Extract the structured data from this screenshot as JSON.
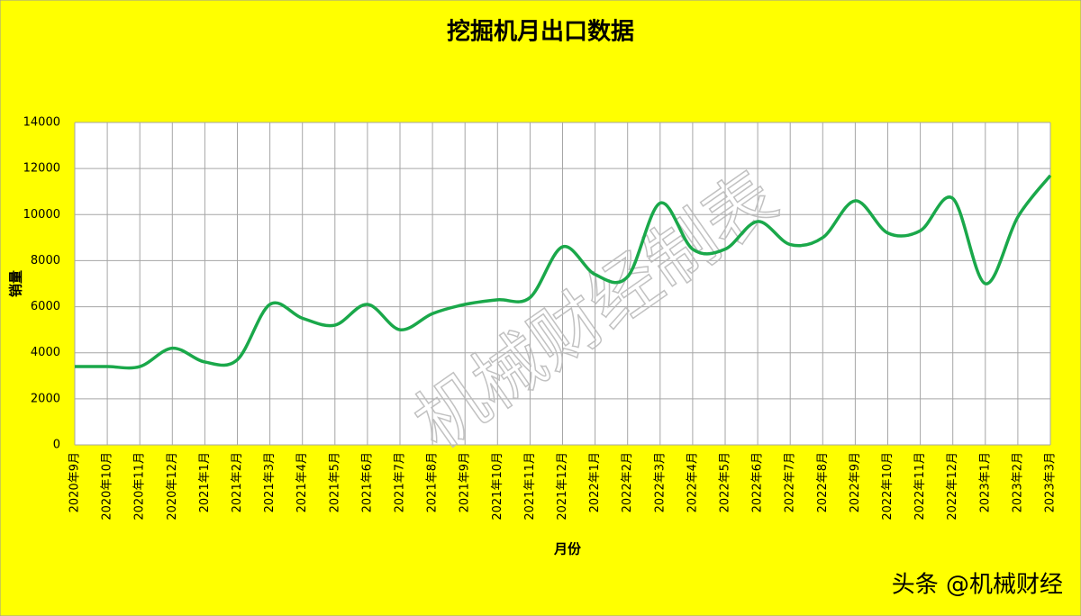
{
  "chart_data": {
    "type": "line",
    "title": "挖掘机月出口数据",
    "x_label": "月份",
    "y_label": "销量",
    "watermark": "机械财经制表",
    "footer": "头条 @机械财经",
    "categories": [
      "2020年9月",
      "2020年10月",
      "2020年11月",
      "2020年12月",
      "2021年1月",
      "2021年2月",
      "2021年3月",
      "2021年4月",
      "2021年5月",
      "2021年6月",
      "2021年7月",
      "2021年8月",
      "2021年9月",
      "2021年10月",
      "2021年11月",
      "2021年12月",
      "2022年1月",
      "2022年2月",
      "2022年3月",
      "2022年4月",
      "2022年5月",
      "2022年6月",
      "2022年7月",
      "2022年8月",
      "2022年9月",
      "2022年10月",
      "2022年11月",
      "2022年12月",
      "2023年1月",
      "2023年2月",
      "2023年3月"
    ],
    "values": [
      3400,
      3400,
      3400,
      4200,
      3600,
      3700,
      6100,
      5500,
      5200,
      6100,
      5000,
      5700,
      6100,
      6300,
      6400,
      8600,
      7400,
      7300,
      10500,
      8500,
      8500,
      9700,
      8700,
      9000,
      10600,
      9200,
      9300,
      10700,
      7000,
      9900,
      11700
    ],
    "color": "#1aa84a",
    "ylim": [
      0,
      14000
    ],
    "yticks": [
      0,
      2000,
      4000,
      6000,
      8000,
      10000,
      12000,
      14000
    ],
    "grid": true
  }
}
